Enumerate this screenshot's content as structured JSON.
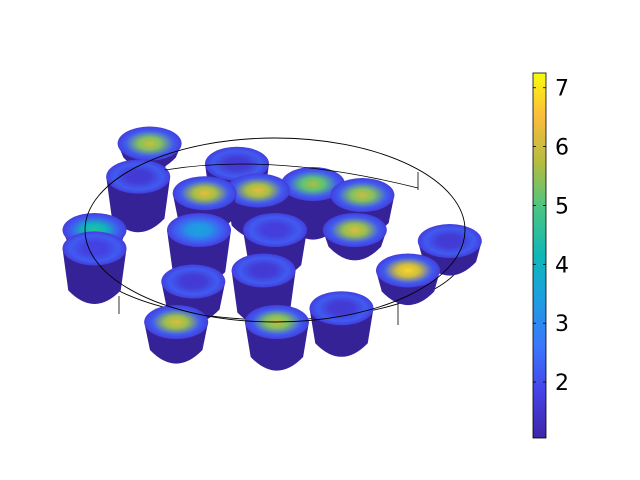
{
  "chart_data": {
    "type": "heatmap",
    "title": "",
    "colorbar": {
      "min": 1.05,
      "max": 7.25,
      "ticks": [
        2,
        3,
        4,
        5,
        6,
        7
      ],
      "tick_labels": [
        "2",
        "3",
        "4",
        "5",
        "6",
        "7"
      ],
      "colormap": "parula"
    },
    "points": [
      {
        "x": 0.0,
        "y": 0.0,
        "h": 0.25,
        "v": 1.7
      },
      {
        "x": 0.2,
        "y": 0.5,
        "h": 0.3,
        "v": 5.7
      },
      {
        "x": 0.46,
        "y": 0.38,
        "h": 0.2,
        "v": 6.0
      },
      {
        "x": -0.2,
        "y": 0.72,
        "h": 0.3,
        "v": 1.6
      },
      {
        "x": -0.72,
        "y": 0.58,
        "h": 0.3,
        "v": 1.6
      },
      {
        "x": -0.66,
        "y": 0.94,
        "h": 0.1,
        "v": 6.0
      },
      {
        "x": -0.37,
        "y": 0.4,
        "h": 0.2,
        "v": 6.3
      },
      {
        "x": -0.09,
        "y": 0.43,
        "h": 0.25,
        "v": 6.3
      },
      {
        "x": -0.4,
        "y": 0.0,
        "h": 0.3,
        "v": 3.5
      },
      {
        "x": -0.95,
        "y": 0.0,
        "h": 0.1,
        "v": 4.5
      },
      {
        "x": 0.42,
        "y": 0.0,
        "h": 0.12,
        "v": 6.2
      },
      {
        "x": 0.92,
        "y": -0.12,
        "h": 0.15,
        "v": 1.6
      },
      {
        "x": 0.7,
        "y": -0.44,
        "h": 0.15,
        "v": 6.8
      },
      {
        "x": -0.43,
        "y": -0.56,
        "h": 0.2,
        "v": 1.6
      },
      {
        "x": -0.06,
        "y": -0.44,
        "h": 0.3,
        "v": 1.6
      },
      {
        "x": -0.95,
        "y": -0.2,
        "h": 0.3,
        "v": 1.8
      },
      {
        "x": -0.52,
        "y": -1.0,
        "h": 0.2,
        "v": 6.2
      },
      {
        "x": 0.01,
        "y": -1.0,
        "h": 0.25,
        "v": 6.0
      },
      {
        "x": 0.35,
        "y": -0.85,
        "h": 0.25,
        "v": 1.6
      }
    ]
  }
}
